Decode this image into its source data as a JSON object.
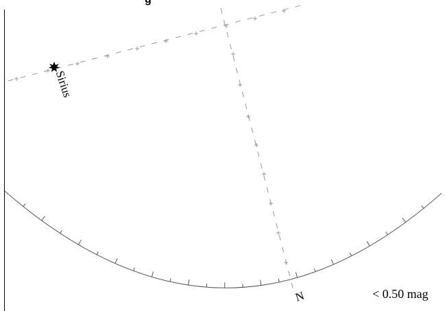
{
  "title": "g",
  "star": {
    "name": "Sirius",
    "marker": "star-burst-icon"
  },
  "compass": {
    "north_label": "N"
  },
  "magnitude_limit": {
    "label": "< 0.50 mag"
  },
  "colors": {
    "background": "#ffffff",
    "horizon": "#000000",
    "grid": "#999999",
    "text": "#000000"
  }
}
